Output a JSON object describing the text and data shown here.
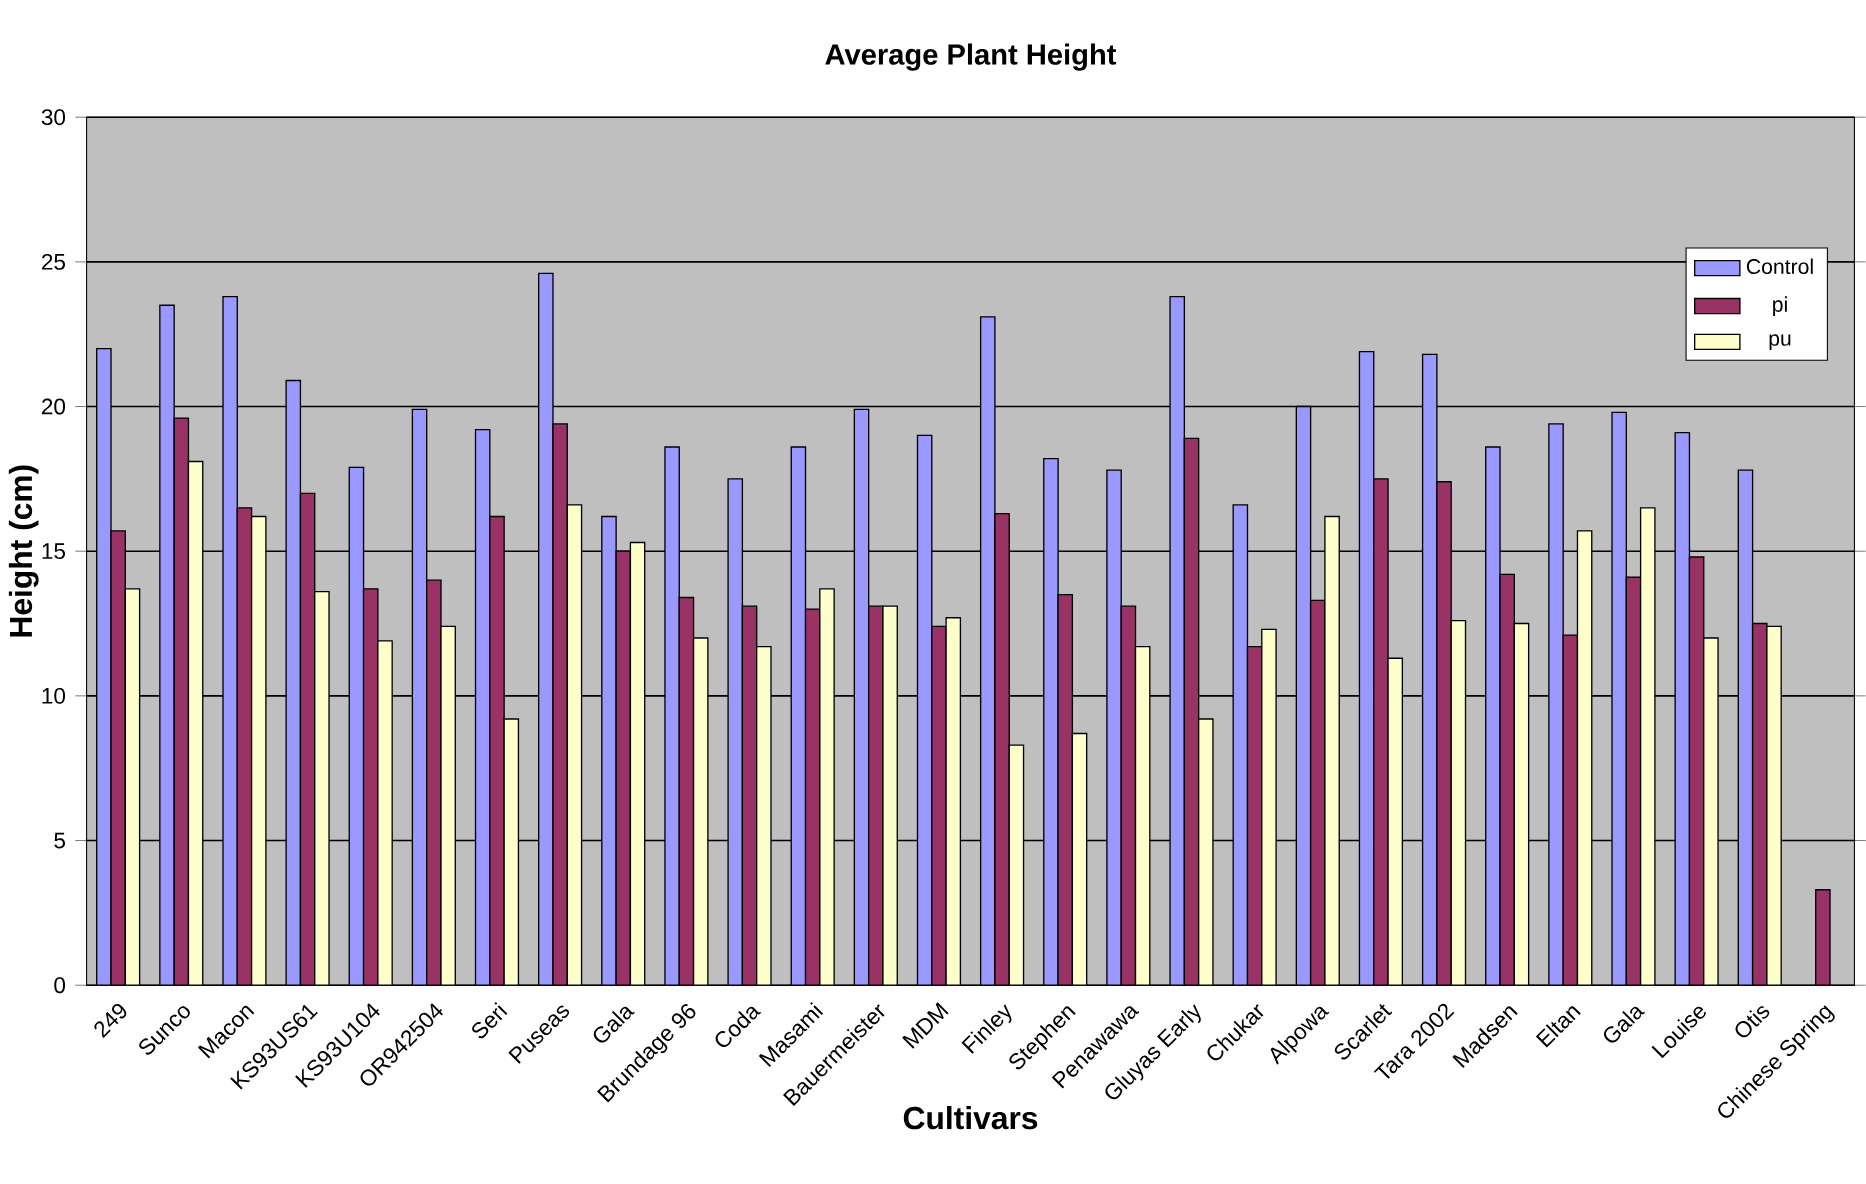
{
  "chart_data": {
    "type": "bar",
    "title": "Average Plant Height",
    "xlabel": "Cultivars",
    "ylabel": "Height (cm)",
    "categories": [
      "249",
      "Sunco",
      "Macon",
      "KS93US61",
      "KS93U104",
      "OR942504",
      "Seri",
      "Puseas",
      "Gala",
      "Brundage 96",
      "Coda",
      "Masami",
      "Bauermeister",
      "MDM",
      "Finley",
      "Stephen",
      "Penawawa",
      "Gluyas Early",
      "Chukar",
      "Alpowa",
      "Scarlet",
      "Tara 2002",
      "Madsen",
      "Eltan",
      "Gala",
      "Louise",
      "Otis",
      "Chinese Spring"
    ],
    "series": [
      {
        "name": "Control",
        "color": "#9999ff",
        "values": [
          22.0,
          23.5,
          23.8,
          20.9,
          17.9,
          19.9,
          19.2,
          24.6,
          16.2,
          18.6,
          17.5,
          18.6,
          19.9,
          19.0,
          23.1,
          18.2,
          17.8,
          23.8,
          16.6,
          20.0,
          21.9,
          21.8,
          18.6,
          19.4,
          19.8,
          19.1,
          17.8,
          null
        ]
      },
      {
        "name": "pi",
        "color": "#993366",
        "values": [
          15.7,
          19.6,
          16.5,
          17.0,
          13.7,
          14.0,
          16.2,
          19.4,
          15.0,
          13.4,
          13.1,
          13.0,
          13.1,
          12.4,
          16.3,
          13.5,
          13.1,
          18.9,
          11.7,
          13.3,
          17.5,
          17.4,
          14.2,
          12.1,
          14.1,
          14.8,
          12.5,
          3.3
        ]
      },
      {
        "name": "pu",
        "color": "#ffffcc",
        "values": [
          13.7,
          18.1,
          16.2,
          13.6,
          11.9,
          12.4,
          9.2,
          16.6,
          15.3,
          12.0,
          11.7,
          13.7,
          13.1,
          12.7,
          8.3,
          8.7,
          11.7,
          9.2,
          12.3,
          16.2,
          11.3,
          12.6,
          12.5,
          15.7,
          16.5,
          12.0,
          12.4,
          null
        ]
      }
    ],
    "ylim": [
      0,
      30
    ],
    "yticks": [
      0,
      5,
      10,
      15,
      20,
      25,
      30
    ],
    "grid": "y",
    "legend": "top right"
  }
}
